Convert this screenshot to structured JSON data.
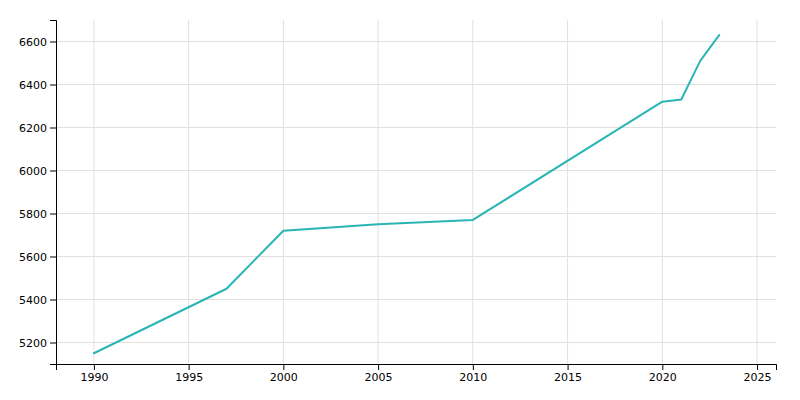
{
  "chart_data": {
    "type": "line",
    "x": [
      1990,
      1997,
      2000,
      2005,
      2010,
      2020,
      2021,
      2022,
      2023
    ],
    "values": [
      5150,
      5450,
      5720,
      5750,
      5770,
      6320,
      6330,
      6510,
      6630
    ],
    "color": "#2ab5b5",
    "xlim": [
      1988,
      2026
    ],
    "ylim": [
      5100,
      6700
    ],
    "xticks": [
      1990,
      1995,
      2000,
      2005,
      2010,
      2015,
      2020,
      2025
    ],
    "yticks": [
      5200,
      5400,
      5600,
      5800,
      6000,
      6200,
      6400,
      6600
    ],
    "grid": true
  }
}
